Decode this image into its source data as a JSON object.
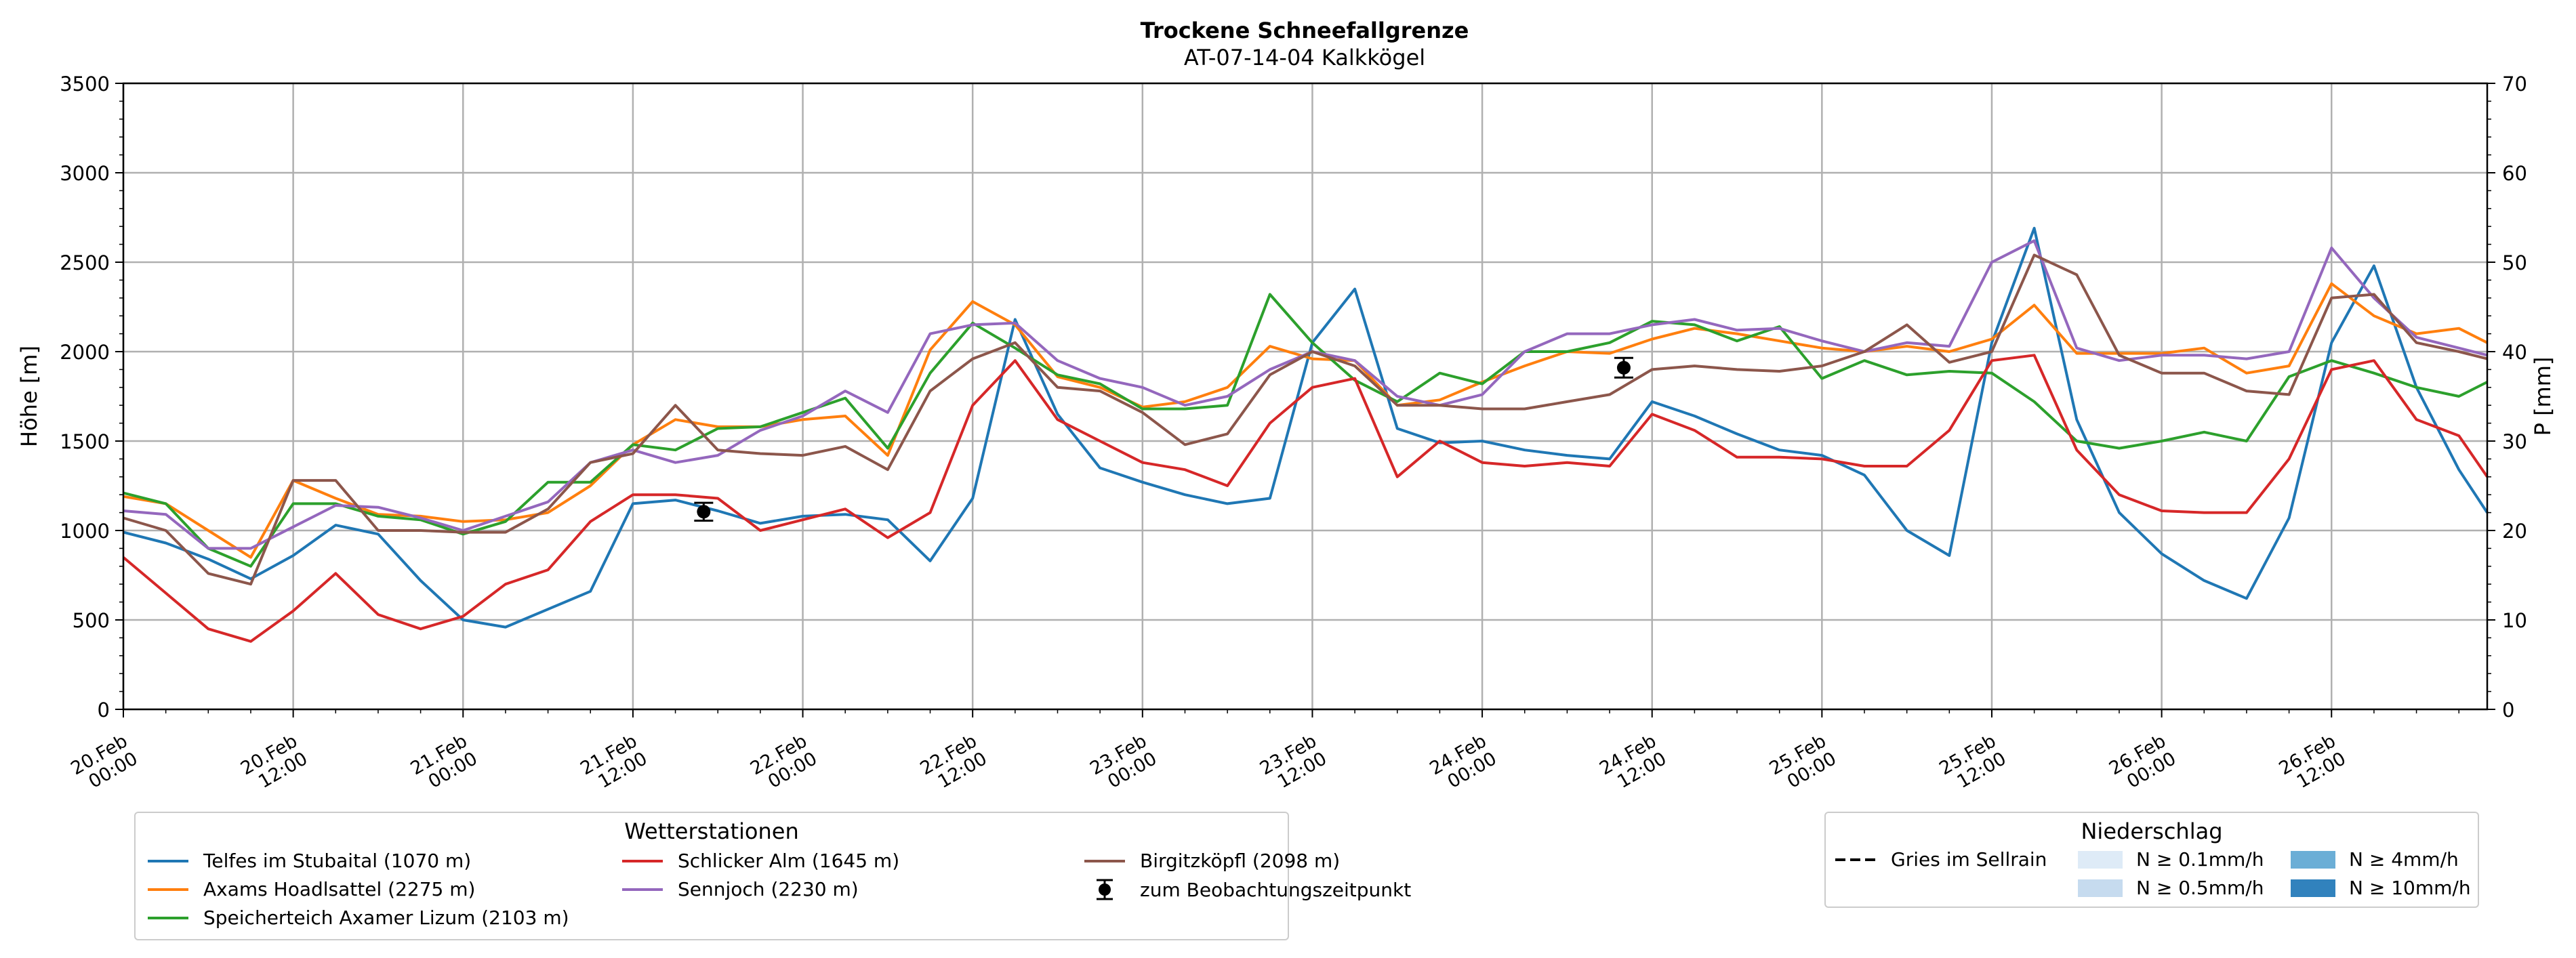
{
  "chart_data": {
    "type": "line",
    "title": "Trockene Schneefallgrenze",
    "subtitle": "AT-07-14-04 Kalkkögel",
    "ylabel": "Höhe [m]",
    "y2label": "P [mm]",
    "ylim": [
      0,
      3500
    ],
    "y2lim": [
      0,
      70
    ],
    "yticks": [
      0,
      500,
      1000,
      1500,
      2000,
      2500,
      3000,
      3500
    ],
    "y2ticks": [
      0,
      10,
      20,
      30,
      40,
      50,
      60,
      70
    ],
    "grid": true,
    "x_unit": "hours since 20.Feb 00:00",
    "xlim": [
      0,
      167
    ],
    "xticks": [
      {
        "x": 0,
        "line1": "20.Feb",
        "line2": "00:00"
      },
      {
        "x": 12,
        "line1": "20.Feb",
        "line2": "12:00"
      },
      {
        "x": 24,
        "line1": "21.Feb",
        "line2": "00:00"
      },
      {
        "x": 36,
        "line1": "21.Feb",
        "line2": "12:00"
      },
      {
        "x": 48,
        "line1": "22.Feb",
        "line2": "00:00"
      },
      {
        "x": 60,
        "line1": "22.Feb",
        "line2": "12:00"
      },
      {
        "x": 72,
        "line1": "23.Feb",
        "line2": "00:00"
      },
      {
        "x": 84,
        "line1": "23.Feb",
        "line2": "12:00"
      },
      {
        "x": 96,
        "line1": "24.Feb",
        "line2": "00:00"
      },
      {
        "x": 108,
        "line1": "24.Feb",
        "line2": "12:00"
      },
      {
        "x": 120,
        "line1": "25.Feb",
        "line2": "00:00"
      },
      {
        "x": 132,
        "line1": "25.Feb",
        "line2": "12:00"
      },
      {
        "x": 144,
        "line1": "26.Feb",
        "line2": "00:00"
      },
      {
        "x": 156,
        "line1": "26.Feb",
        "line2": "12:00"
      }
    ],
    "x": [
      0,
      3,
      6,
      9,
      12,
      15,
      18,
      21,
      24,
      27,
      30,
      33,
      36,
      39,
      42,
      45,
      48,
      51,
      54,
      57,
      60,
      63,
      66,
      69,
      72,
      75,
      78,
      81,
      84,
      87,
      90,
      93,
      96,
      99,
      102,
      105,
      108,
      111,
      114,
      117,
      120,
      123,
      126,
      129,
      132,
      135,
      138,
      141,
      144,
      147,
      150,
      153,
      156,
      159,
      162,
      165,
      167
    ],
    "series": [
      {
        "name": "Telfes im Stubaital (1070 m)",
        "color": "#1f77b4",
        "values": [
          990,
          930,
          840,
          730,
          860,
          1030,
          980,
          720,
          500,
          460,
          560,
          660,
          1150,
          1170,
          1110,
          1040,
          1080,
          1090,
          1060,
          830,
          1180,
          2180,
          1650,
          1350,
          1270,
          1200,
          1150,
          1180,
          2050,
          2350,
          1570,
          1490,
          1500,
          1450,
          1420,
          1400,
          1720,
          1640,
          1540,
          1450,
          1420,
          1310,
          1000,
          860,
          2050,
          2690,
          1620,
          1100,
          870,
          720,
          620,
          1070,
          2050,
          2480,
          1800,
          1340,
          1100
        ]
      },
      {
        "name": "Axams Hoadlsattel (2275 m)",
        "color": "#ff7f0e",
        "values": [
          1190,
          1150,
          1000,
          850,
          1280,
          1180,
          1090,
          1080,
          1050,
          1060,
          1100,
          1250,
          1480,
          1620,
          1580,
          1580,
          1620,
          1640,
          1420,
          2010,
          2280,
          2150,
          1860,
          1800,
          1690,
          1720,
          1800,
          2030,
          1960,
          1950,
          1700,
          1730,
          1830,
          1920,
          2000,
          1990,
          2070,
          2130,
          2100,
          2060,
          2020,
          2000,
          2030,
          2000,
          2070,
          2260,
          1990,
          1990,
          1990,
          2020,
          1880,
          1920,
          2380,
          2200,
          2100,
          2130,
          2050
        ]
      },
      {
        "name": "Speicherteich Axamer Lizum (2103 m)",
        "color": "#2ca02c",
        "values": [
          1210,
          1150,
          900,
          800,
          1150,
          1150,
          1080,
          1060,
          980,
          1050,
          1270,
          1270,
          1480,
          1450,
          1570,
          1580,
          1660,
          1740,
          1460,
          1880,
          2160,
          2020,
          1870,
          1820,
          1680,
          1680,
          1700,
          2320,
          2050,
          1840,
          1720,
          1880,
          1820,
          2000,
          2000,
          2050,
          2170,
          2150,
          2060,
          2140,
          1850,
          1950,
          1870,
          1890,
          1880,
          1720,
          1500,
          1460,
          1500,
          1550,
          1500,
          1860,
          1950,
          1880,
          1800,
          1750,
          1830
        ]
      },
      {
        "name": "Schlicker Alm (1645 m)",
        "color": "#d62728",
        "values": [
          850,
          650,
          450,
          380,
          550,
          760,
          530,
          450,
          520,
          700,
          780,
          1050,
          1200,
          1200,
          1180,
          1000,
          1060,
          1120,
          960,
          1100,
          1700,
          1950,
          1620,
          1500,
          1380,
          1340,
          1250,
          1600,
          1800,
          1850,
          1300,
          1500,
          1380,
          1360,
          1380,
          1360,
          1650,
          1560,
          1410,
          1410,
          1400,
          1360,
          1360,
          1560,
          1950,
          1980,
          1450,
          1200,
          1110,
          1100,
          1100,
          1400,
          1900,
          1950,
          1620,
          1530,
          1300
        ]
      },
      {
        "name": "Sennjoch (2230 m)",
        "color": "#9467bd",
        "values": [
          1110,
          1090,
          900,
          900,
          1020,
          1140,
          1130,
          1070,
          1000,
          1080,
          1160,
          1380,
          1450,
          1380,
          1420,
          1560,
          1640,
          1780,
          1660,
          2100,
          2150,
          2160,
          1950,
          1850,
          1800,
          1700,
          1750,
          1900,
          2000,
          1950,
          1750,
          1700,
          1760,
          2000,
          2100,
          2100,
          2150,
          2180,
          2120,
          2130,
          2060,
          2000,
          2050,
          2030,
          2500,
          2620,
          2020,
          1950,
          1980,
          1980,
          1960,
          2000,
          2580,
          2300,
          2080,
          2020,
          1980
        ]
      },
      {
        "name": "Birgitzköpfl (2098 m)",
        "color": "#8c564b",
        "values": [
          1070,
          1000,
          760,
          700,
          1280,
          1280,
          1000,
          1000,
          990,
          990,
          1120,
          1380,
          1430,
          1700,
          1450,
          1430,
          1420,
          1470,
          1340,
          1780,
          1960,
          2050,
          1800,
          1780,
          1660,
          1480,
          1540,
          1870,
          2000,
          1920,
          1700,
          1700,
          1680,
          1680,
          1720,
          1760,
          1900,
          1920,
          1900,
          1890,
          1920,
          2000,
          2150,
          1940,
          2000,
          2540,
          2430,
          1980,
          1880,
          1880,
          1780,
          1760,
          2300,
          2320,
          2050,
          2000,
          1960
        ]
      }
    ],
    "observations": {
      "label": "zum Beobachtungszeitpunkt",
      "points": [
        {
          "x": 41,
          "y": 1105,
          "err": 50
        },
        {
          "x": 106,
          "y": 1910,
          "err": 55
        }
      ]
    },
    "legend_stations_title": "Wetterstationen",
    "legend_precip": {
      "title": "Niederschlag",
      "line_label": "Gries im Sellrain",
      "items": [
        {
          "label": "N ≥ 0.1mm/h",
          "color": "#deebf7"
        },
        {
          "label": "N ≥ 4mm/h",
          "color": "#6baed6"
        },
        {
          "label": "N ≥ 0.5mm/h",
          "color": "#c6dbef"
        },
        {
          "label": "N ≥ 10mm/h",
          "color": "#3182bd"
        }
      ]
    }
  }
}
